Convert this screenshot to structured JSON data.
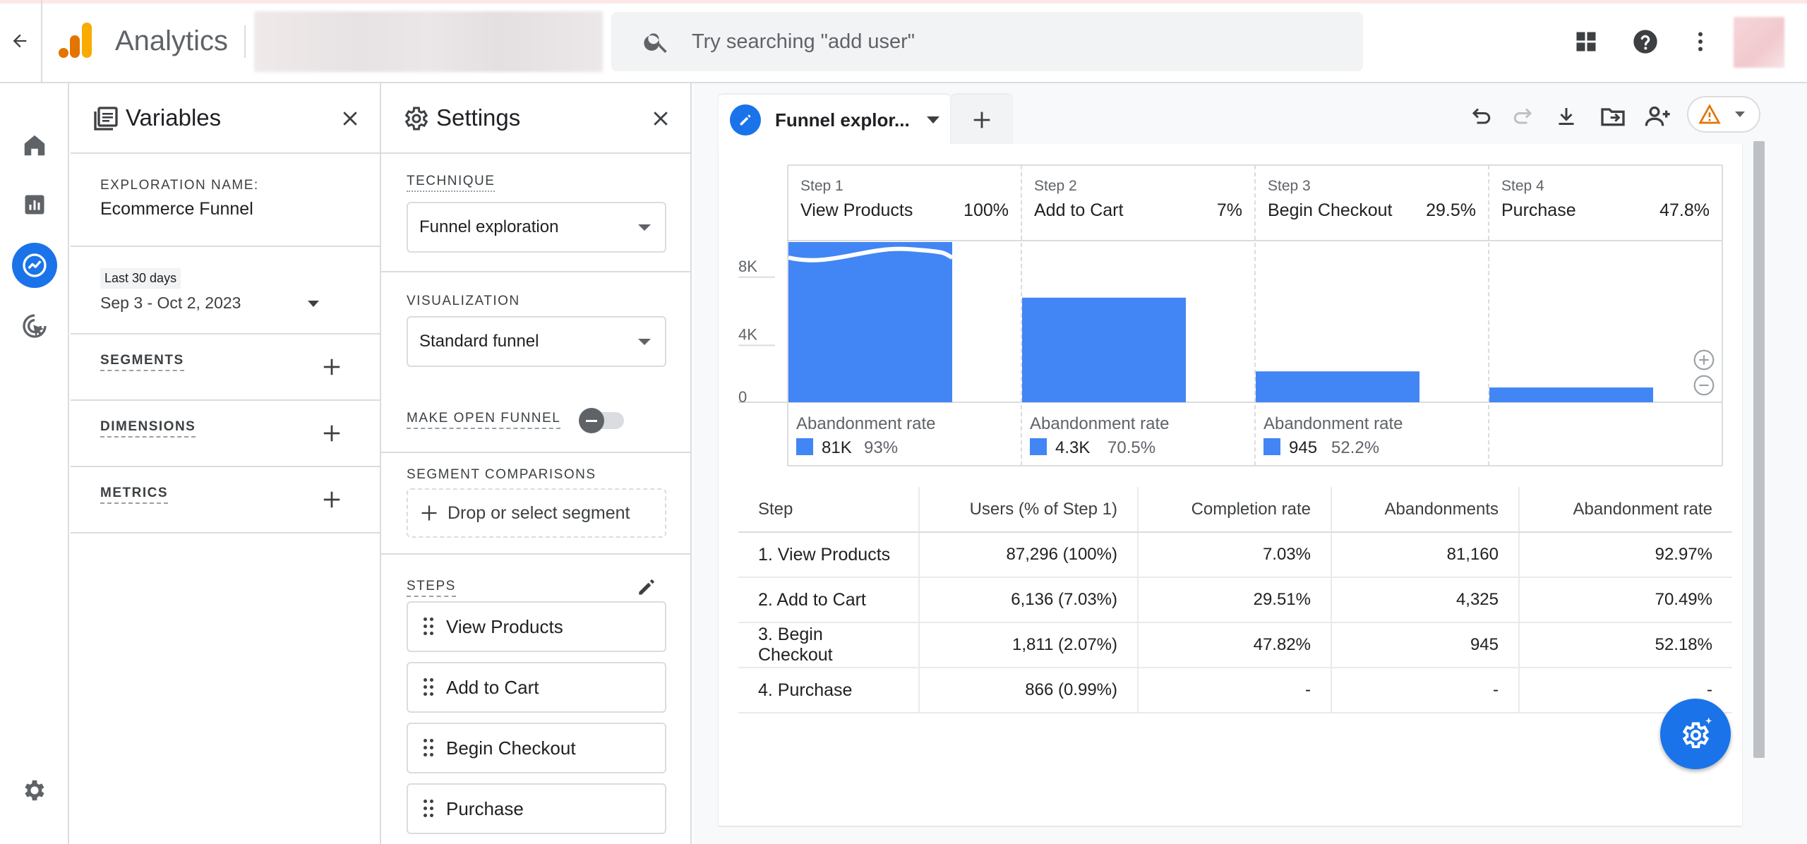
{
  "header": {
    "app_title": "Analytics",
    "search_placeholder": "Try searching \"add user\""
  },
  "variables": {
    "title": "Variables",
    "exploration_label": "EXPLORATION NAME:",
    "exploration_name": "Ecommerce Funnel",
    "date_chip": "Last 30 days",
    "date_range": "Sep 3 - Oct 2, 2023",
    "segments_label": "SEGMENTS",
    "dimensions_label": "DIMENSIONS",
    "metrics_label": "METRICS"
  },
  "settings": {
    "title": "Settings",
    "technique_label": "TECHNIQUE",
    "technique_value": "Funnel exploration",
    "visualization_label": "VISUALIZATION",
    "visualization_value": "Standard funnel",
    "open_funnel_label": "MAKE OPEN FUNNEL",
    "open_funnel_on": false,
    "segment_comparisons_label": "SEGMENT COMPARISONS",
    "drop_segment_label": "Drop or select segment",
    "steps_label": "STEPS",
    "steps": [
      "View Products",
      "Add to Cart",
      "Begin Checkout",
      "Purchase"
    ]
  },
  "tab": {
    "label": "Funnel explor..."
  },
  "chart_data": {
    "type": "bar",
    "y_ticks": [
      "8K",
      "4K",
      "0"
    ],
    "ylim": [
      0,
      9400
    ],
    "bar_color": "#4285f4",
    "abandonment_title": "Abandonment rate",
    "steps": [
      {
        "step_label": "Step 1",
        "name": "View Products",
        "pct": "100%",
        "value": 87296,
        "abandon_count": "81K",
        "abandon_rate": "93%"
      },
      {
        "step_label": "Step 2",
        "name": "Add to Cart",
        "pct": "7%",
        "value": 6136,
        "abandon_count": "4.3K",
        "abandon_rate": "70.5%"
      },
      {
        "step_label": "Step 3",
        "name": "Begin Checkout",
        "pct": "29.5%",
        "value": 1811,
        "abandon_count": "945",
        "abandon_rate": "52.2%"
      },
      {
        "step_label": "Step 4",
        "name": "Purchase",
        "pct": "47.8%",
        "value": 866,
        "abandon_count": "",
        "abandon_rate": ""
      }
    ]
  },
  "table": {
    "headers": [
      "Step",
      "Users (% of Step 1)",
      "Completion rate",
      "Abandonments",
      "Abandonment rate"
    ],
    "rows": [
      [
        "1. View Products",
        "87,296 (100%)",
        "7.03%",
        "81,160",
        "92.97%"
      ],
      [
        "2. Add to Cart",
        "6,136 (7.03%)",
        "29.51%",
        "4,325",
        "70.49%"
      ],
      [
        "3. Begin Checkout",
        "1,811 (2.07%)",
        "47.82%",
        "945",
        "52.18%"
      ],
      [
        "4. Purchase",
        "866 (0.99%)",
        "-",
        "-",
        "-"
      ]
    ]
  }
}
